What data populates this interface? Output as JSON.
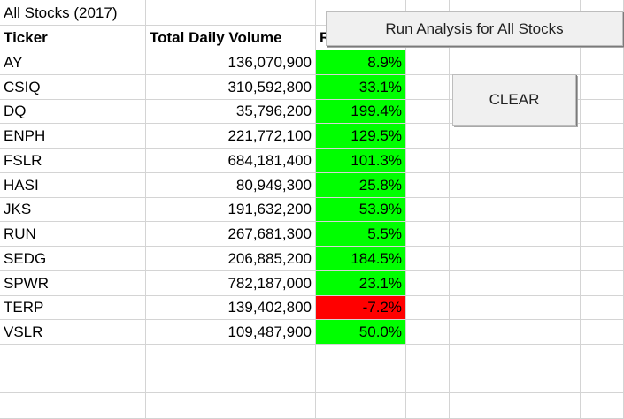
{
  "sheet": {
    "title": "All Stocks (2017)",
    "headers": {
      "ticker": "Ticker",
      "volume": "Total Daily Volume",
      "return": "Return"
    },
    "rows": [
      {
        "ticker": "AY",
        "volume": "136,070,900",
        "return": "8.9%",
        "status": "positive"
      },
      {
        "ticker": "CSIQ",
        "volume": "310,592,800",
        "return": "33.1%",
        "status": "positive"
      },
      {
        "ticker": "DQ",
        "volume": "35,796,200",
        "return": "199.4%",
        "status": "positive"
      },
      {
        "ticker": "ENPH",
        "volume": "221,772,100",
        "return": "129.5%",
        "status": "positive"
      },
      {
        "ticker": "FSLR",
        "volume": "684,181,400",
        "return": "101.3%",
        "status": "positive"
      },
      {
        "ticker": "HASI",
        "volume": "80,949,300",
        "return": "25.8%",
        "status": "positive"
      },
      {
        "ticker": "JKS",
        "volume": "191,632,200",
        "return": "53.9%",
        "status": "positive"
      },
      {
        "ticker": "RUN",
        "volume": "267,681,300",
        "return": "5.5%",
        "status": "positive"
      },
      {
        "ticker": "SEDG",
        "volume": "206,885,200",
        "return": "184.5%",
        "status": "positive"
      },
      {
        "ticker": "SPWR",
        "volume": "782,187,000",
        "return": "23.1%",
        "status": "positive"
      },
      {
        "ticker": "TERP",
        "volume": "139,402,800",
        "return": "-7.2%",
        "status": "negative"
      },
      {
        "ticker": "VSLR",
        "volume": "109,487,900",
        "return": "50.0%",
        "status": "positive"
      }
    ]
  },
  "buttons": {
    "run_label": "Run Analysis  for All Stocks",
    "clear_label": "CLEAR"
  },
  "colors": {
    "positive": "#00ff00",
    "negative": "#ff0000",
    "gridline": "#d4d4d4"
  }
}
